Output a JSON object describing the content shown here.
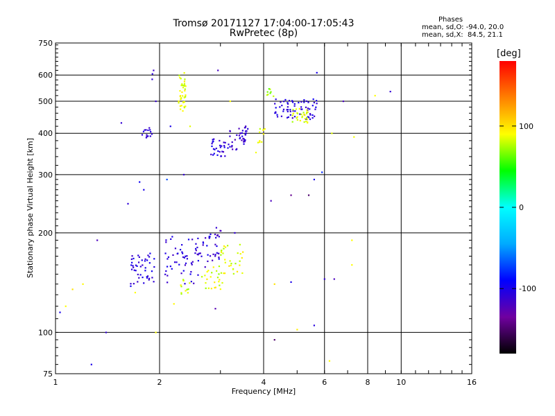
{
  "chart_data": {
    "type": "scatter",
    "title": "Tromsø 20171127 17:04:00-17:05:43",
    "subtitle": "RwPretec (8p)",
    "xlabel": "Frequency [MHz]",
    "ylabel": "Stationary phase Virtual Height [km]",
    "xscale": "log",
    "yscale": "log",
    "xlim": [
      1,
      16
    ],
    "ylim": [
      75,
      750
    ],
    "x_ticks": [
      1,
      2,
      4,
      6,
      8,
      10,
      16
    ],
    "y_ticks": [
      75,
      100,
      200,
      300,
      400,
      500,
      600,
      750
    ],
    "grid": true,
    "stats": {
      "heading": "Phases",
      "line1": "mean, sd,O: -94.0, 20.0",
      "line2": "mean, sd,X:  84.5, 21.1"
    },
    "colorbar": {
      "label": "[deg]",
      "ticks": [
        100,
        0,
        -100
      ],
      "range": [
        -180,
        180
      ],
      "colors": [
        "#000000",
        "#7000a0",
        "#0000ff",
        "#00aaff",
        "#00ffff",
        "#00ff00",
        "#ffff00",
        "#ff8000",
        "#ff0000"
      ]
    },
    "clusters": [
      {
        "f": [
          2.27,
          2.38
        ],
        "h": [
          455,
          610
        ],
        "n": 40,
        "phase": [
          75,
          98
        ]
      },
      {
        "f": [
          1.78,
          1.93
        ],
        "h": [
          388,
          420
        ],
        "n": 14,
        "phase": [
          -118,
          -100
        ]
      },
      {
        "f": [
          1.9,
          1.93
        ],
        "h": [
          575,
          640
        ],
        "n": 3,
        "phase": [
          -120,
          -105
        ]
      },
      {
        "f": [
          2.75,
          3.1
        ],
        "h": [
          340,
          385
        ],
        "n": 28,
        "phase": [
          -120,
          -95
        ]
      },
      {
        "f": [
          3.15,
          3.55
        ],
        "h": [
          355,
          420
        ],
        "n": 30,
        "phase": [
          -125,
          -100
        ]
      },
      {
        "f": [
          3.5,
          3.6
        ],
        "h": [
          370,
          425
        ],
        "n": 12,
        "phase": [
          -118,
          -100
        ]
      },
      {
        "f": [
          4.3,
          5.7
        ],
        "h": [
          440,
          510
        ],
        "n": 70,
        "phase": [
          -115,
          -95
        ]
      },
      {
        "f": [
          4.8,
          5.4
        ],
        "h": [
          430,
          475
        ],
        "n": 30,
        "phase": [
          70,
          95
        ]
      },
      {
        "f": [
          3.85,
          4.05
        ],
        "h": [
          375,
          420
        ],
        "n": 10,
        "phase": [
          75,
          95
        ]
      },
      {
        "f": [
          4.05,
          4.3
        ],
        "h": [
          510,
          560
        ],
        "n": 8,
        "phase": [
          55,
          95
        ]
      },
      {
        "f": [
          1.65,
          1.95
        ],
        "h": [
          140,
          175
        ],
        "n": 45,
        "phase": [
          -115,
          -95
        ]
      },
      {
        "f": [
          2.05,
          2.6
        ],
        "h": [
          140,
          195
        ],
        "n": 50,
        "phase": [
          -118,
          -95
        ]
      },
      {
        "f": [
          2.55,
          3.0
        ],
        "h": [
          155,
          200
        ],
        "n": 35,
        "phase": [
          -120,
          -95
        ]
      },
      {
        "f": [
          2.3,
          2.45
        ],
        "h": [
          130,
          145
        ],
        "n": 12,
        "phase": [
          70,
          95
        ]
      },
      {
        "f": [
          2.65,
          3.05
        ],
        "h": [
          135,
          160
        ],
        "n": 25,
        "phase": [
          70,
          100
        ]
      },
      {
        "f": [
          3.0,
          3.5
        ],
        "h": [
          150,
          185
        ],
        "n": 30,
        "phase": [
          72,
          100
        ]
      },
      {
        "f": [
          2.85,
          3.1
        ],
        "h": [
          195,
          215
        ],
        "n": 5,
        "phase": [
          -130,
          -110
        ]
      }
    ],
    "scattered_points": [
      {
        "x": 1.12,
        "y": 135,
        "phase": 100
      },
      {
        "x": 1.03,
        "y": 115,
        "phase": -100
      },
      {
        "x": 1.07,
        "y": 120,
        "phase": 90
      },
      {
        "x": 1.2,
        "y": 140,
        "phase": 92
      },
      {
        "x": 1.32,
        "y": 190,
        "phase": -120
      },
      {
        "x": 1.4,
        "y": 100,
        "phase": -110
      },
      {
        "x": 1.55,
        "y": 430,
        "phase": -110
      },
      {
        "x": 1.62,
        "y": 245,
        "phase": -108
      },
      {
        "x": 1.75,
        "y": 285,
        "phase": -95
      },
      {
        "x": 1.8,
        "y": 270,
        "phase": -100
      },
      {
        "x": 1.95,
        "y": 500,
        "phase": -112
      },
      {
        "x": 2.1,
        "y": 290,
        "phase": -70
      },
      {
        "x": 2.15,
        "y": 420,
        "phase": -100
      },
      {
        "x": 2.35,
        "y": 300,
        "phase": -110
      },
      {
        "x": 2.45,
        "y": 420,
        "phase": 85
      },
      {
        "x": 2.95,
        "y": 620,
        "phase": -118
      },
      {
        "x": 3.2,
        "y": 500,
        "phase": 90
      },
      {
        "x": 3.8,
        "y": 350,
        "phase": 88
      },
      {
        "x": 4.2,
        "y": 250,
        "phase": -120
      },
      {
        "x": 4.8,
        "y": 260,
        "phase": -140
      },
      {
        "x": 5.4,
        "y": 260,
        "phase": -150
      },
      {
        "x": 5.6,
        "y": 290,
        "phase": -100
      },
      {
        "x": 5.7,
        "y": 610,
        "phase": -100
      },
      {
        "x": 5.9,
        "y": 305,
        "phase": -80
      },
      {
        "x": 6.0,
        "y": 145,
        "phase": -110
      },
      {
        "x": 6.3,
        "y": 400,
        "phase": 85
      },
      {
        "x": 6.8,
        "y": 500,
        "phase": -120
      },
      {
        "x": 7.2,
        "y": 160,
        "phase": 90
      },
      {
        "x": 7.3,
        "y": 390,
        "phase": 88
      },
      {
        "x": 8.4,
        "y": 520,
        "phase": 90
      },
      {
        "x": 9.3,
        "y": 535,
        "phase": -110
      },
      {
        "x": 1.27,
        "y": 80,
        "phase": -100
      },
      {
        "x": 4.3,
        "y": 95,
        "phase": -150
      },
      {
        "x": 5.0,
        "y": 102,
        "phase": 95
      },
      {
        "x": 5.6,
        "y": 105,
        "phase": -105
      },
      {
        "x": 6.2,
        "y": 82,
        "phase": 90
      },
      {
        "x": 1.95,
        "y": 100,
        "phase": 90
      },
      {
        "x": 2.2,
        "y": 122,
        "phase": 92
      },
      {
        "x": 2.9,
        "y": 118,
        "phase": -125
      },
      {
        "x": 3.3,
        "y": 200,
        "phase": -110
      },
      {
        "x": 4.3,
        "y": 140,
        "phase": 100
      },
      {
        "x": 4.8,
        "y": 142,
        "phase": -100
      },
      {
        "x": 6.4,
        "y": 145,
        "phase": -120
      },
      {
        "x": 7.2,
        "y": 190,
        "phase": 90
      },
      {
        "x": 1.65,
        "y": 138,
        "phase": -95
      },
      {
        "x": 1.7,
        "y": 132,
        "phase": 90
      }
    ]
  }
}
